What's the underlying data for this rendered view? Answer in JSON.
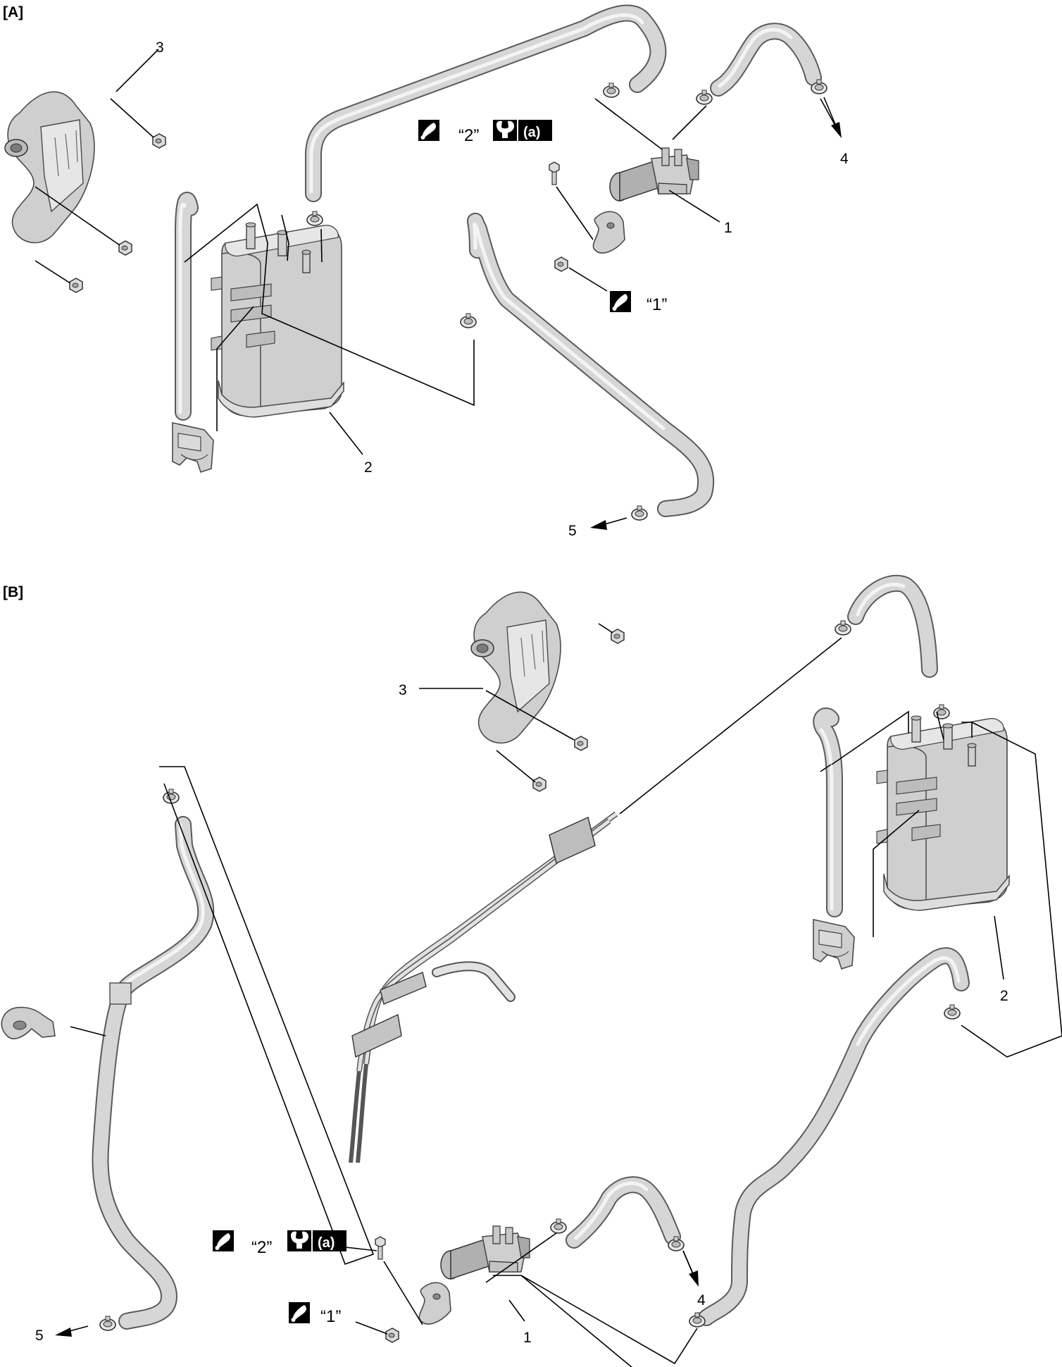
{
  "sections": [
    {
      "id": "A",
      "label": "[A]"
    },
    {
      "id": "B",
      "label": "[B]"
    }
  ],
  "callouts": {
    "a1": "1",
    "a2": "2",
    "a3": "3",
    "a4": "4",
    "a5": "5",
    "b1": "1",
    "b2": "2",
    "b3": "3",
    "b4": "4",
    "b5": "5"
  },
  "notes": {
    "grease_2": "“2”",
    "grease_1": "“1”",
    "torque": "(a)"
  },
  "icons": [
    "grease-icon",
    "torque-wrench-icon",
    "arrow-icon"
  ]
}
